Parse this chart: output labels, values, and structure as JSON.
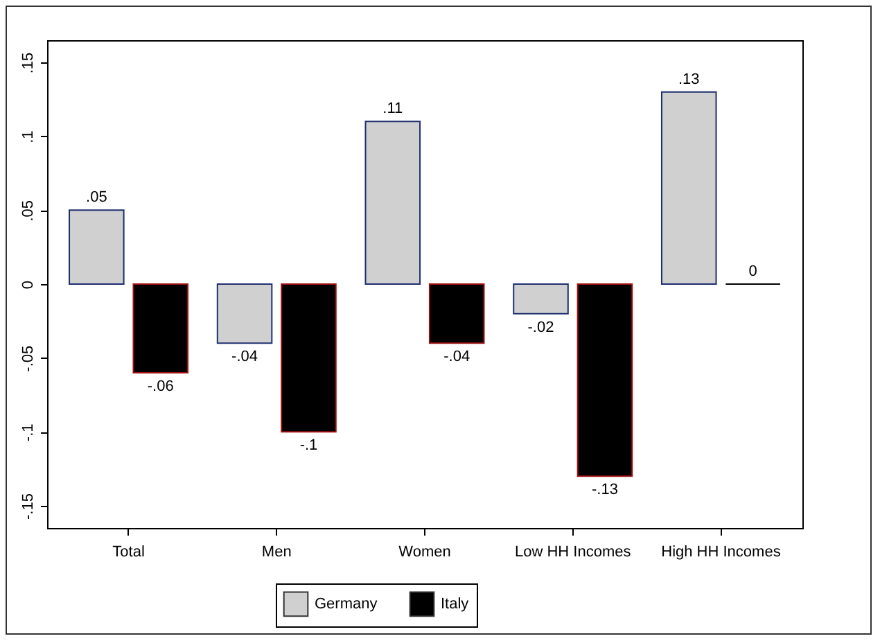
{
  "chart_data": {
    "type": "bar",
    "categories": [
      "Total",
      "Men",
      "Women",
      "Low HH Incomes",
      "High HH Incomes"
    ],
    "series": [
      {
        "name": "Germany",
        "color": "#d0d0d0",
        "values": [
          0.05,
          -0.04,
          0.11,
          -0.02,
          0.13
        ],
        "value_labels": [
          ".05",
          "-.04",
          ".11",
          "-.02",
          ".13"
        ]
      },
      {
        "name": "Italy",
        "color": "#000000",
        "values": [
          -0.06,
          -0.1,
          -0.04,
          -0.13,
          0
        ],
        "value_labels": [
          "-.06",
          "-.1",
          "-.04",
          "-.13",
          "0"
        ]
      }
    ],
    "ylim": [
      -0.165,
      0.165
    ],
    "yticks": [
      {
        "value": -0.15,
        "label": "-.15"
      },
      {
        "value": -0.1,
        "label": "-.1"
      },
      {
        "value": -0.05,
        "label": "-.05"
      },
      {
        "value": 0,
        "label": "0"
      },
      {
        "value": 0.05,
        "label": ".05"
      },
      {
        "value": 0.1,
        "label": ".1"
      },
      {
        "value": 0.15,
        "label": ".15"
      }
    ],
    "grid": false,
    "legend": "bottom"
  }
}
